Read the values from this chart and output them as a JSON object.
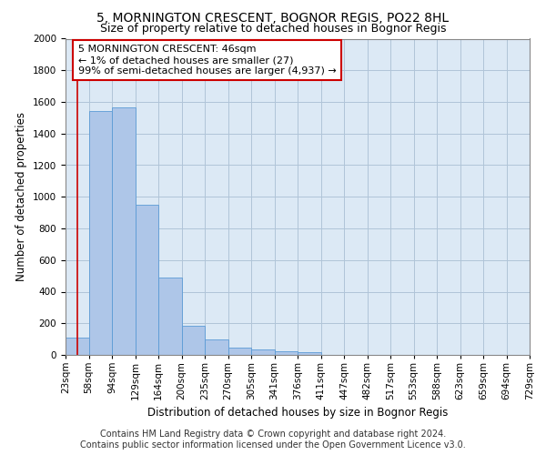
{
  "title": "5, MORNINGTON CRESCENT, BOGNOR REGIS, PO22 8HL",
  "subtitle": "Size of property relative to detached houses in Bognor Regis",
  "xlabel": "Distribution of detached houses by size in Bognor Regis",
  "ylabel": "Number of detached properties",
  "bar_values": [
    110,
    1540,
    1565,
    950,
    490,
    185,
    95,
    48,
    33,
    22,
    18,
    0,
    0,
    0,
    0,
    0,
    0,
    0,
    0,
    0
  ],
  "bar_labels": [
    "23sqm",
    "58sqm",
    "94sqm",
    "129sqm",
    "164sqm",
    "200sqm",
    "235sqm",
    "270sqm",
    "305sqm",
    "341sqm",
    "376sqm",
    "411sqm",
    "447sqm",
    "482sqm",
    "517sqm",
    "553sqm",
    "588sqm",
    "623sqm",
    "659sqm",
    "694sqm",
    "729sqm"
  ],
  "bar_color": "#aec6e8",
  "bar_edge_color": "#5b9bd5",
  "vline_color": "#cc0000",
  "annotation_text": "5 MORNINGTON CRESCENT: 46sqm\n← 1% of detached houses are smaller (27)\n99% of semi-detached houses are larger (4,937) →",
  "annotation_box_color": "#ffffff",
  "annotation_box_edge": "#cc0000",
  "ylim": [
    0,
    2000
  ],
  "yticks": [
    0,
    200,
    400,
    600,
    800,
    1000,
    1200,
    1400,
    1600,
    1800,
    2000
  ],
  "footer1": "Contains HM Land Registry data © Crown copyright and database right 2024.",
  "footer2": "Contains public sector information licensed under the Open Government Licence v3.0.",
  "bg_color": "#ffffff",
  "axes_bg_color": "#dce9f5",
  "grid_color": "#b0c4d8",
  "title_fontsize": 10,
  "subtitle_fontsize": 9,
  "axis_label_fontsize": 8.5,
  "tick_fontsize": 7.5,
  "annotation_fontsize": 8,
  "footer_fontsize": 7
}
